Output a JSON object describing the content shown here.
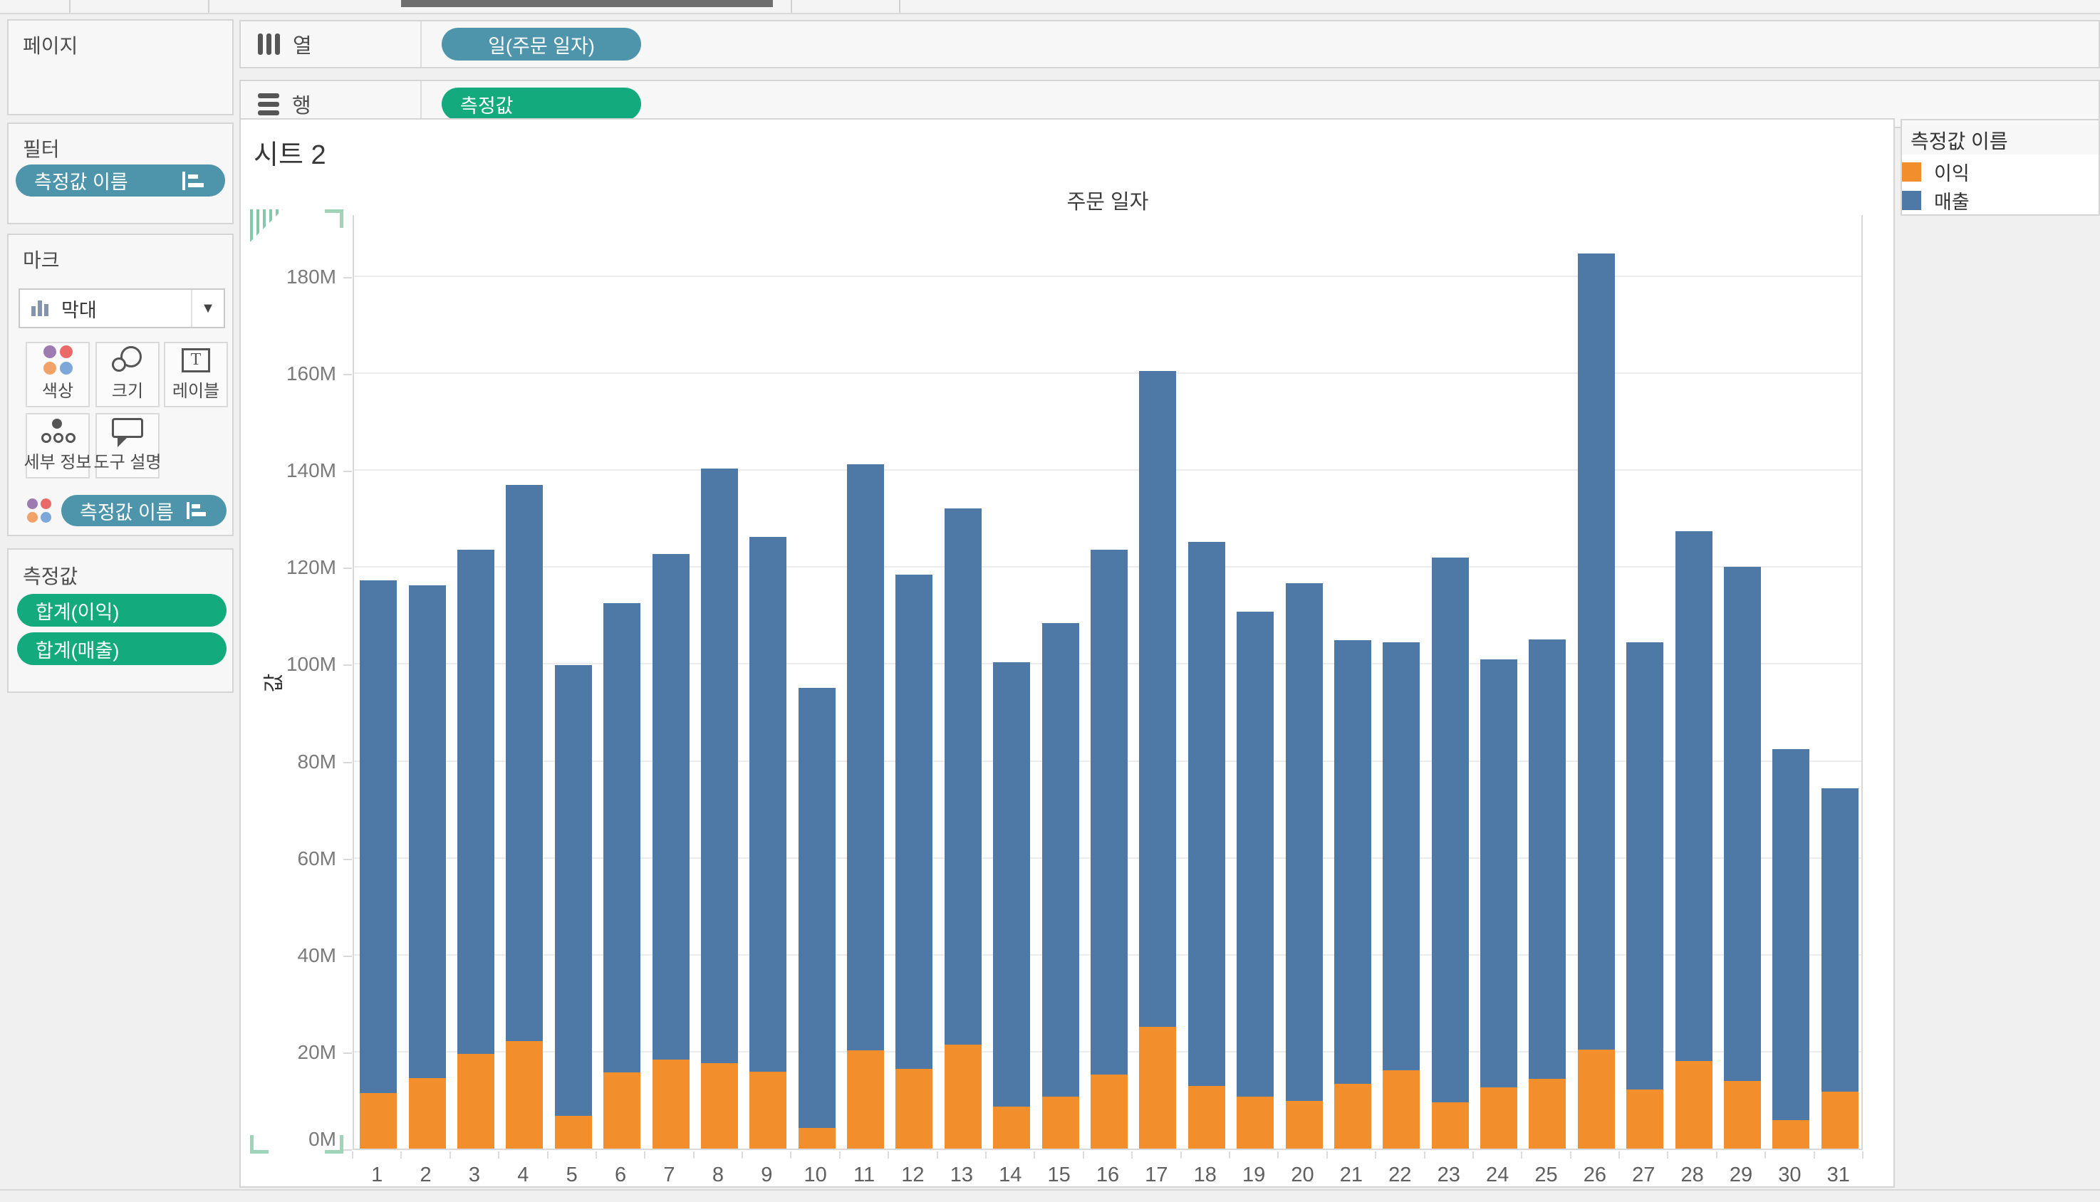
{
  "shelves": {
    "columns_label": "열",
    "rows_label": "행",
    "columns_pill": "일(주문 일자)",
    "rows_pill": "측정값"
  },
  "sidebar": {
    "pages": {
      "title": "페이지"
    },
    "filters": {
      "title": "필터",
      "pill": "측정값 이름"
    },
    "marks": {
      "title": "마크",
      "mark_type": "막대",
      "buttons": [
        {
          "label": "색상"
        },
        {
          "label": "크기"
        },
        {
          "label": "레이블"
        },
        {
          "label": "세부 정보"
        },
        {
          "label": "도구 설명"
        }
      ],
      "pill": "측정값 이름"
    },
    "measure_values": {
      "title": "측정값",
      "pills": [
        "합계(이익)",
        "합계(매출)"
      ]
    }
  },
  "sheet": {
    "title": "시트 2"
  },
  "legend": {
    "title": "측정값 이름",
    "items": [
      {
        "label": "이익",
        "color": "#f28e2b"
      },
      {
        "label": "매출",
        "color": "#4e79a7"
      }
    ]
  },
  "chart_data": {
    "type": "bar",
    "stacked": true,
    "title": "주문 일자",
    "xlabel": "주문 일자",
    "ylabel": "값",
    "unit": "M",
    "ylim": [
      0,
      193
    ],
    "grid": true,
    "legend_position": "right",
    "categories": [
      1,
      2,
      3,
      4,
      5,
      6,
      7,
      8,
      9,
      10,
      11,
      12,
      13,
      14,
      15,
      16,
      17,
      18,
      19,
      20,
      21,
      22,
      23,
      24,
      25,
      26,
      27,
      28,
      29,
      30,
      31
    ],
    "y_tick_labels": [
      "0M",
      "20M",
      "40M",
      "60M",
      "80M",
      "100M",
      "120M",
      "140M",
      "160M",
      "180M"
    ],
    "series": [
      {
        "name": "이익",
        "color": "#f28e2b",
        "values": [
          11.4,
          14.6,
          19.6,
          22.2,
          6.8,
          15.7,
          18.4,
          17.7,
          15.8,
          4.3,
          20.3,
          16.5,
          21.5,
          8.7,
          10.8,
          15.3,
          25.1,
          12.9,
          10.8,
          9.8,
          13.4,
          16.1,
          9.6,
          12.7,
          14.4,
          20.4,
          12.2,
          18.1,
          13.9,
          5.9,
          11.8
        ]
      },
      {
        "name": "매출",
        "color": "#4e79a7",
        "values": [
          105.9,
          101.6,
          103.9,
          114.7,
          93.0,
          96.8,
          104.3,
          122.6,
          110.4,
          90.8,
          120.9,
          102.0,
          110.6,
          91.6,
          97.7,
          108.2,
          135.4,
          112.3,
          100.0,
          106.9,
          91.5,
          88.3,
          112.4,
          88.2,
          90.7,
          164.3,
          92.2,
          109.3,
          106.1,
          76.6,
          62.6
        ]
      }
    ],
    "totals": [
      117.3,
      116.2,
      123.5,
      136.9,
      99.8,
      112.5,
      122.7,
      140.3,
      126.2,
      95.1,
      141.2,
      118.5,
      132.1,
      100.3,
      108.5,
      123.5,
      160.5,
      125.2,
      110.8,
      116.7,
      104.9,
      104.4,
      122.0,
      100.9,
      105.1,
      184.7,
      104.4,
      127.4,
      120.0,
      82.5,
      74.4
    ]
  }
}
